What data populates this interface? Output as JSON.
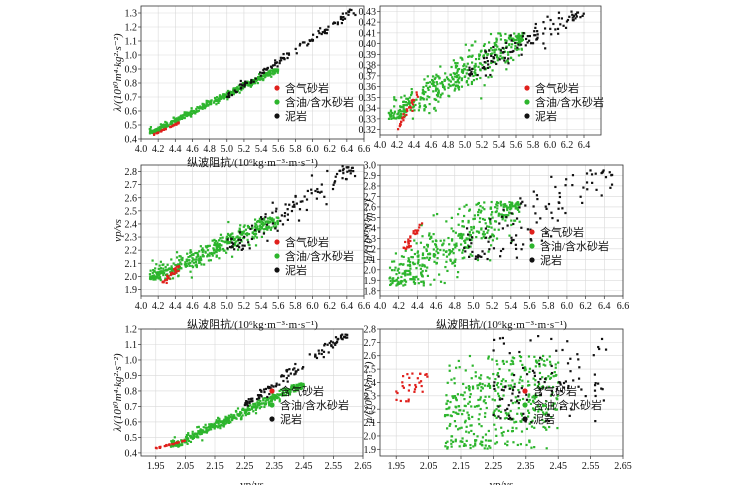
{
  "colors": {
    "gas": "#e0201c",
    "oil": "#2db52d",
    "mud": "#111111",
    "grid": "#d9d9d9",
    "axis": "#333333"
  },
  "legend_labels": [
    "含气砂岩",
    "含油/含水砂岩",
    "泥岩"
  ],
  "chart_data": [
    {
      "type": "scatter",
      "xlabel": "纵波阻抗/(10⁶kg·m⁻³·m·s⁻¹)",
      "ylabel": "λ/(10¹⁰m⁴·kg²·s⁻²)",
      "xlim": [
        4.0,
        6.6
      ],
      "ylim": [
        0.4,
        1.35
      ],
      "xticks": [
        "4.0",
        "4.2",
        "4.4",
        "4.6",
        "4.8",
        "5.0",
        "5.2",
        "5.4",
        "5.6",
        "5.8",
        "6.0",
        "6.2",
        "6.4",
        "6.6"
      ],
      "yticks": [
        "0.4",
        "0.5",
        "0.6",
        "0.7",
        "0.8",
        "0.9",
        "1.0",
        "1.1",
        "1.2",
        "1.3"
      ],
      "legend": "bottom-right",
      "series": [
        {
          "name": "含气砂岩",
          "x_range": [
            4.15,
            4.45
          ],
          "y_range": [
            0.43,
            0.52
          ]
        },
        {
          "name": "含油/含水砂岩",
          "x_range": [
            4.1,
            5.6
          ],
          "y_range": [
            0.44,
            0.9
          ]
        },
        {
          "name": "泥岩",
          "x_range": [
            5.0,
            6.5
          ],
          "y_range": [
            0.7,
            1.33
          ]
        }
      ]
    },
    {
      "type": "scatter",
      "xlabel": "",
      "ylabel": "σ",
      "xlim": [
        4.0,
        6.6
      ],
      "ylim": [
        0.315,
        0.435
      ],
      "xticks": [
        "4.0",
        "4.2",
        "4.4",
        "4.6",
        "4.8",
        "5.0",
        "5.2",
        "5.4",
        "5.6",
        "5.8",
        "6.0",
        "6.2",
        "6.4"
      ],
      "yticks": [
        "0.32",
        "0.33",
        "0.34",
        "0.35",
        "0.36",
        "0.37",
        "0.38",
        "0.39",
        "0.40",
        "0.41",
        "0.42",
        "0.43"
      ],
      "legend": "bottom-right",
      "series": [
        {
          "name": "含气砂岩",
          "x_range": [
            4.2,
            4.45
          ],
          "y_range": [
            0.32,
            0.355
          ]
        },
        {
          "name": "含油/含水砂岩",
          "x_range": [
            4.1,
            5.7
          ],
          "y_range": [
            0.33,
            0.41
          ]
        },
        {
          "name": "泥岩",
          "x_range": [
            5.0,
            6.4
          ],
          "y_range": [
            0.37,
            0.43
          ]
        }
      ]
    },
    {
      "type": "scatter",
      "xlabel": "纵波阻抗/(10⁶kg·m⁻³·m·s⁻¹)",
      "ylabel": "vp/vs",
      "xlim": [
        4.0,
        6.6
      ],
      "ylim": [
        1.85,
        2.85
      ],
      "xticks": [
        "4.0",
        "4.2",
        "4.4",
        "4.6",
        "4.8",
        "5.0",
        "5.2",
        "5.4",
        "5.6",
        "5.8",
        "6.0",
        "6.2",
        "6.4",
        "6.6"
      ],
      "yticks": [
        "1.9",
        "2.0",
        "2.1",
        "2.2",
        "2.3",
        "2.4",
        "2.5",
        "2.6",
        "2.7",
        "2.8"
      ],
      "legend": "bottom-right",
      "series": [
        {
          "name": "含气砂岩",
          "x_range": [
            4.25,
            4.45
          ],
          "y_range": [
            1.95,
            2.08
          ]
        },
        {
          "name": "含油/含水砂岩",
          "x_range": [
            4.1,
            5.6
          ],
          "y_range": [
            1.97,
            2.45
          ]
        },
        {
          "name": "泥岩",
          "x_range": [
            5.0,
            6.5
          ],
          "y_range": [
            2.2,
            2.85
          ]
        }
      ]
    },
    {
      "type": "scatter",
      "xlabel": "纵波阻抗/(10⁶kg·m⁻³·m·s⁻¹)",
      "ylabel": "μ/(10¹⁰N·m⁻²)",
      "xlim": [
        4.0,
        6.6
      ],
      "ylim": [
        1.75,
        3.0
      ],
      "xticks": [
        "4.0",
        "4.2",
        "4.4",
        "4.6",
        "4.8",
        "5.0",
        "5.2",
        "5.4",
        "5.6",
        "5.8",
        "6.0",
        "6.2",
        "6.4",
        "6.6"
      ],
      "yticks": [
        "1.8",
        "1.9",
        "2.0",
        "2.1",
        "2.2",
        "2.3",
        "2.4",
        "2.5",
        "2.6",
        "2.7",
        "2.8",
        "2.9",
        "3.0"
      ],
      "legend": "bottom-left",
      "series": [
        {
          "name": "含气砂岩",
          "x_range": [
            4.25,
            4.45
          ],
          "y_range": [
            2.2,
            2.45
          ]
        },
        {
          "name": "含油/含水砂岩",
          "x_range": [
            4.1,
            5.5
          ],
          "y_range": [
            1.85,
            2.65
          ]
        },
        {
          "name": "泥岩",
          "x_range": [
            4.9,
            6.5
          ],
          "y_range": [
            2.1,
            2.95
          ]
        }
      ]
    },
    {
      "type": "scatter",
      "xlabel": "vp/vs",
      "ylabel": "λ/(10¹⁰m⁴·kg²·s⁻²)",
      "xlim": [
        1.9,
        2.65
      ],
      "ylim": [
        0.38,
        1.2
      ],
      "xticks": [
        "1.95",
        "2.05",
        "2.15",
        "2.25",
        "2.35",
        "2.45",
        "2.55",
        "2.65"
      ],
      "yticks": [
        "0.4",
        "0.5",
        "0.6",
        "0.7",
        "0.8",
        "0.9",
        "1.0",
        "1.1",
        "1.2"
      ],
      "legend": "bottom-center",
      "series": [
        {
          "name": "含气砂岩",
          "x_range": [
            1.95,
            2.05
          ],
          "y_range": [
            0.43,
            0.48
          ]
        },
        {
          "name": "含油/含水砂岩",
          "x_range": [
            2.0,
            2.45
          ],
          "y_range": [
            0.44,
            0.85
          ]
        },
        {
          "name": "泥岩",
          "x_range": [
            2.25,
            2.6
          ],
          "y_range": [
            0.7,
            1.18
          ]
        }
      ]
    },
    {
      "type": "scatter",
      "xlabel": "vp/vs",
      "ylabel": "μ/(10¹⁰N·m⁻²)",
      "xlim": [
        1.9,
        2.65
      ],
      "ylim": [
        1.85,
        2.8
      ],
      "xticks": [
        "1.95",
        "2.05",
        "2.15",
        "2.25",
        "2.35",
        "2.45",
        "2.55",
        "2.65"
      ],
      "yticks": [
        "1.9",
        "2.0",
        "2.1",
        "2.2",
        "2.3",
        "2.4",
        "2.5",
        "2.6",
        "2.7",
        "2.8"
      ],
      "legend": "bottom-center",
      "series": [
        {
          "name": "含气砂岩",
          "x_range": [
            1.95,
            2.05
          ],
          "y_range": [
            2.25,
            2.48
          ]
        },
        {
          "name": "含油/含水砂岩",
          "x_range": [
            2.1,
            2.45
          ],
          "y_range": [
            1.9,
            2.6
          ]
        },
        {
          "name": "泥岩",
          "x_range": [
            2.25,
            2.6
          ],
          "y_range": [
            2.1,
            2.75
          ]
        }
      ]
    }
  ]
}
